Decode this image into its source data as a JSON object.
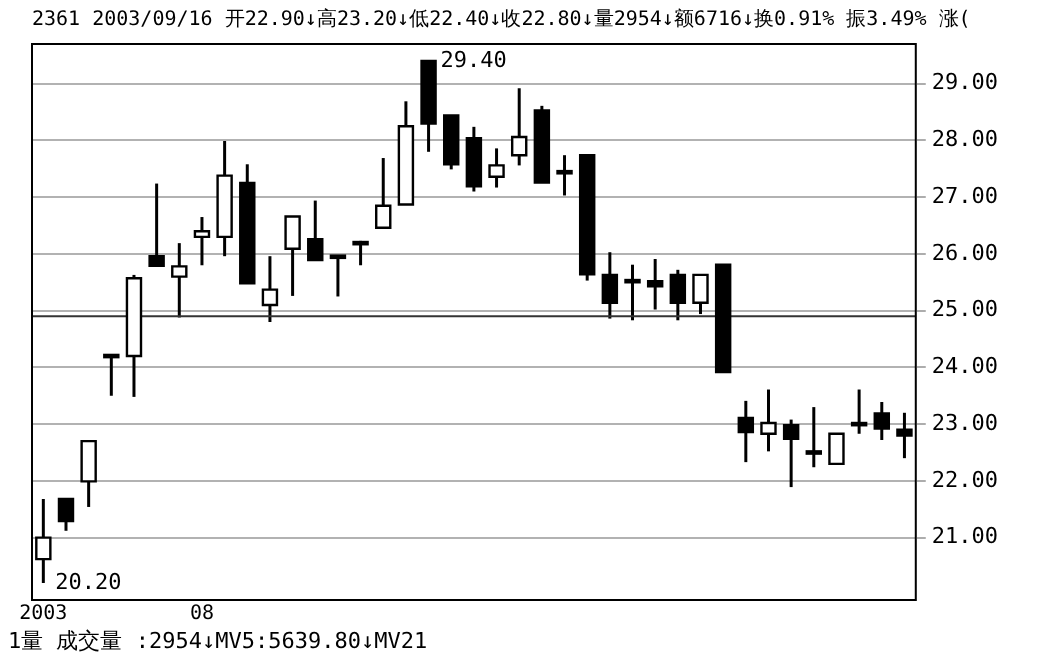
{
  "chart_data": {
    "type": "candlestick",
    "title": "2361 2003/09/16 开22.90↓高23.20↓低22.40↓收22.80↓量2954↓额6716↓换0.91% 振3.49% 涨(",
    "categories": [
      "2003",
      null,
      null,
      null,
      null,
      null,
      null,
      "08",
      null,
      null,
      null,
      null,
      null,
      null,
      null,
      null,
      null,
      null,
      null,
      null,
      null,
      null,
      null,
      null,
      null,
      null,
      null,
      null,
      null,
      null,
      null,
      null,
      null,
      null,
      null,
      null,
      null,
      null,
      null
    ],
    "ohlc": [
      [
        20.62,
        21.68,
        20.2,
        21.0
      ],
      [
        21.68,
        21.68,
        21.12,
        21.29
      ],
      [
        21.99,
        22.7,
        21.54,
        22.7
      ],
      [
        24.2,
        24.2,
        23.5,
        24.2
      ],
      [
        24.2,
        25.63,
        23.48,
        25.57
      ],
      [
        25.96,
        27.24,
        25.79,
        25.79
      ],
      [
        25.6,
        26.19,
        24.88,
        25.78
      ],
      [
        26.3,
        26.65,
        25.8,
        26.4
      ],
      [
        26.3,
        27.99,
        25.96,
        27.38
      ],
      [
        27.25,
        27.58,
        25.48,
        25.48
      ],
      [
        25.1,
        25.96,
        24.8,
        25.37
      ],
      [
        26.09,
        26.66,
        25.26,
        26.66
      ],
      [
        26.26,
        26.94,
        25.89,
        25.89
      ],
      [
        25.95,
        25.95,
        25.25,
        25.95
      ],
      [
        26.19,
        26.23,
        25.8,
        26.19
      ],
      [
        26.46,
        27.69,
        26.46,
        26.85
      ],
      [
        26.87,
        28.69,
        26.87,
        28.25
      ],
      [
        29.4,
        29.4,
        27.8,
        28.3
      ],
      [
        28.44,
        28.44,
        27.49,
        27.58
      ],
      [
        28.04,
        28.24,
        27.1,
        27.19
      ],
      [
        27.36,
        27.86,
        27.17,
        27.56
      ],
      [
        27.74,
        28.92,
        27.56,
        28.06
      ],
      [
        28.53,
        28.61,
        27.26,
        27.26
      ],
      [
        27.44,
        27.74,
        27.03,
        27.44
      ],
      [
        27.74,
        27.74,
        25.53,
        25.64
      ],
      [
        25.63,
        26.03,
        24.86,
        25.14
      ],
      [
        25.52,
        25.81,
        24.83,
        25.52
      ],
      [
        25.52,
        25.91,
        25.02,
        25.43
      ],
      [
        25.63,
        25.72,
        24.83,
        25.14
      ],
      [
        25.14,
        25.63,
        24.94,
        25.63
      ],
      [
        25.81,
        25.81,
        23.92,
        23.92
      ],
      [
        23.11,
        23.41,
        22.33,
        22.86
      ],
      [
        22.83,
        23.61,
        22.52,
        23.02
      ],
      [
        22.98,
        23.08,
        21.89,
        22.74
      ],
      [
        22.5,
        23.3,
        22.24,
        22.5
      ],
      [
        22.3,
        22.83,
        22.3,
        22.83
      ],
      [
        23.0,
        23.61,
        22.83,
        23.0
      ],
      [
        23.19,
        23.39,
        22.72,
        22.92
      ],
      [
        22.9,
        23.2,
        22.4,
        22.8
      ]
    ],
    "ylim": [
      19.9,
      29.7
    ],
    "yticks": [
      {
        "value": 21,
        "label": "21.00"
      },
      {
        "value": 22,
        "label": "22.00"
      },
      {
        "value": 23,
        "label": "23.00"
      },
      {
        "value": 24,
        "label": "24.00"
      },
      {
        "value": 25,
        "label": "25.00"
      },
      {
        "value": 26,
        "label": "26.00"
      },
      {
        "value": 27,
        "label": "27.00"
      },
      {
        "value": 28,
        "label": "28.00"
      },
      {
        "value": 29,
        "label": "29.00"
      }
    ],
    "grid": "y",
    "ref_lines": [
      {
        "axis": "y",
        "value": 24.9,
        "color": "#333333"
      }
    ],
    "annotations": [
      "29.40",
      "20.20",
      "1量 成交量 :2954↓MV5:5639.80↓MV21"
    ]
  }
}
